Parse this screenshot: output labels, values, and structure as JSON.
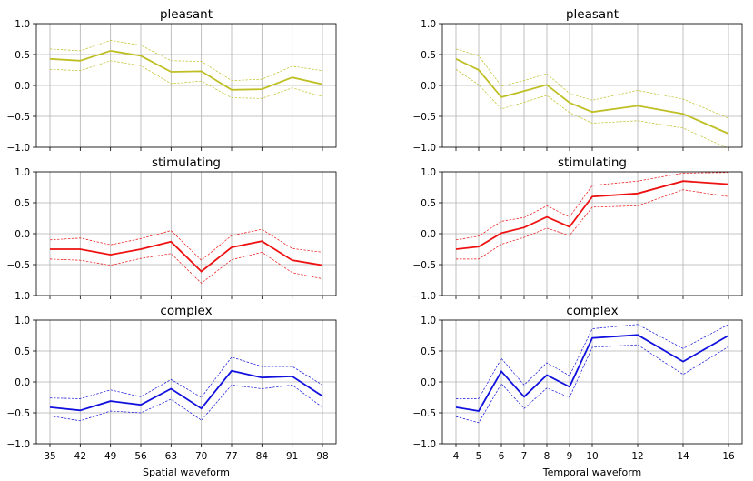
{
  "chart_data": [
    {
      "type": "line",
      "panel": "left-top",
      "title": "pleasant",
      "color": "#bfbf25",
      "x": [
        35,
        42,
        49,
        56,
        63,
        70,
        77,
        84,
        91,
        98
      ],
      "ylim": [
        -1.0,
        1.0
      ],
      "yticks": [
        "1.0",
        "0.5",
        "0.0",
        "−0.5",
        "−1.0"
      ],
      "mean": [
        0.43,
        0.4,
        0.56,
        0.48,
        0.22,
        0.23,
        -0.07,
        -0.06,
        0.13,
        0.02
      ],
      "upper": [
        0.59,
        0.56,
        0.73,
        0.65,
        0.4,
        0.39,
        0.08,
        0.1,
        0.31,
        0.24
      ],
      "lower": [
        0.26,
        0.24,
        0.4,
        0.32,
        0.03,
        0.07,
        -0.2,
        -0.21,
        -0.04,
        -0.18
      ],
      "grid": true
    },
    {
      "type": "line",
      "panel": "right-top",
      "title": "pleasant",
      "color": "#bfbf25",
      "x": [
        4,
        5,
        6,
        7,
        8,
        9,
        10,
        12,
        14,
        16
      ],
      "ylim": [
        -1.0,
        1.0
      ],
      "yticks": [
        "1.0",
        "0.5",
        "0.0",
        "−0.5",
        "−1.0"
      ],
      "mean": [
        0.43,
        0.25,
        -0.19,
        -0.09,
        0.01,
        -0.28,
        -0.43,
        -0.33,
        -0.46,
        -0.78
      ],
      "upper": [
        0.59,
        0.48,
        -0.01,
        0.08,
        0.19,
        -0.13,
        -0.24,
        -0.08,
        -0.22,
        -0.53
      ],
      "lower": [
        0.26,
        0.01,
        -0.38,
        -0.27,
        -0.16,
        -0.44,
        -0.61,
        -0.57,
        -0.69,
        -1.02
      ],
      "grid": true
    },
    {
      "type": "line",
      "panel": "left-middle",
      "title": "stimulating",
      "color": "#ee1111",
      "x": [
        35,
        42,
        49,
        56,
        63,
        70,
        77,
        84,
        91,
        98
      ],
      "ylim": [
        -1.0,
        1.0
      ],
      "yticks": [
        "1.0",
        "0.5",
        "0.0",
        "−0.5",
        "−1.0"
      ],
      "mean": [
        -0.25,
        -0.25,
        -0.34,
        -0.25,
        -0.13,
        -0.61,
        -0.22,
        -0.12,
        -0.43,
        -0.51
      ],
      "upper": [
        -0.1,
        -0.07,
        -0.18,
        -0.08,
        0.05,
        -0.43,
        -0.03,
        0.07,
        -0.24,
        -0.3
      ],
      "lower": [
        -0.41,
        -0.43,
        -0.51,
        -0.4,
        -0.32,
        -0.8,
        -0.42,
        -0.3,
        -0.63,
        -0.73
      ],
      "grid": true
    },
    {
      "type": "line",
      "panel": "right-middle",
      "title": "stimulating",
      "color": "#ee1111",
      "x": [
        4,
        5,
        6,
        7,
        8,
        9,
        10,
        12,
        14,
        16
      ],
      "ylim": [
        -1.0,
        1.0
      ],
      "yticks": [
        "1.0",
        "0.5",
        "0.0",
        "−0.5",
        "−1.0"
      ],
      "mean": [
        -0.25,
        -0.21,
        0.01,
        0.1,
        0.27,
        0.11,
        0.6,
        0.65,
        0.85,
        0.8
      ],
      "upper": [
        -0.1,
        -0.04,
        0.2,
        0.26,
        0.45,
        0.27,
        0.78,
        0.85,
        0.98,
        0.99
      ],
      "lower": [
        -0.41,
        -0.41,
        -0.17,
        -0.06,
        0.09,
        -0.03,
        0.43,
        0.45,
        0.71,
        0.6
      ],
      "grid": true
    },
    {
      "type": "line",
      "panel": "left-bottom",
      "title": "complex",
      "color": "#1111dd",
      "x": [
        35,
        42,
        49,
        56,
        63,
        70,
        77,
        84,
        91,
        98
      ],
      "ylim": [
        -1.0,
        1.0
      ],
      "yticks": [
        "1.0",
        "0.5",
        "0.0",
        "−0.5",
        "−1.0"
      ],
      "xlabel": "Spatial waveform",
      "mean": [
        -0.41,
        -0.46,
        -0.31,
        -0.37,
        -0.11,
        -0.43,
        0.18,
        0.07,
        0.09,
        -0.23
      ],
      "upper": [
        -0.26,
        -0.27,
        -0.13,
        -0.24,
        0.04,
        -0.25,
        0.4,
        0.25,
        0.25,
        -0.05
      ],
      "lower": [
        -0.55,
        -0.63,
        -0.47,
        -0.5,
        -0.28,
        -0.62,
        -0.05,
        -0.11,
        -0.05,
        -0.41
      ],
      "grid": true
    },
    {
      "type": "line",
      "panel": "right-bottom",
      "title": "complex",
      "color": "#1111dd",
      "x": [
        4,
        5,
        6,
        7,
        8,
        9,
        10,
        12,
        14,
        16
      ],
      "ylim": [
        -1.0,
        1.0
      ],
      "yticks": [
        "1.0",
        "0.5",
        "0.0",
        "−0.5",
        "−1.0"
      ],
      "xlabel": "Temporal waveform",
      "mean": [
        -0.41,
        -0.47,
        0.17,
        -0.24,
        0.11,
        -0.08,
        0.71,
        0.76,
        0.33,
        0.75
      ],
      "upper": [
        -0.27,
        -0.27,
        0.38,
        -0.05,
        0.31,
        0.1,
        0.86,
        0.93,
        0.54,
        0.93
      ],
      "lower": [
        -0.56,
        -0.66,
        -0.03,
        -0.43,
        -0.1,
        -0.25,
        0.56,
        0.6,
        0.12,
        0.57
      ],
      "grid": true
    }
  ]
}
